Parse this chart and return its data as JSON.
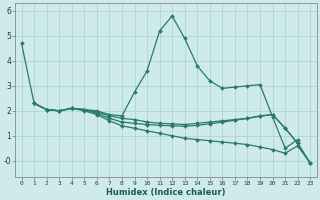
{
  "xlabel": "Humidex (Indice chaleur)",
  "background_color": "#ceeaea",
  "grid_color": "#aacfcf",
  "line_color": "#2a7a6a",
  "xlim": [
    -0.5,
    23.5
  ],
  "ylim": [
    -0.65,
    6.3
  ],
  "xticks": [
    0,
    1,
    2,
    3,
    4,
    5,
    6,
    7,
    8,
    9,
    10,
    11,
    12,
    13,
    14,
    15,
    16,
    17,
    18,
    19,
    20,
    21,
    22,
    23
  ],
  "yticks": [
    0,
    1,
    2,
    3,
    4,
    5,
    6
  ],
  "ytick_labels": [
    "-0",
    "1",
    "2",
    "3",
    "4",
    "5",
    "6"
  ],
  "lines": [
    {
      "x": [
        0,
        1,
        2,
        3,
        4,
        5,
        6,
        7,
        8,
        9,
        10,
        11,
        12,
        13,
        14,
        15,
        16,
        17,
        18,
        19,
        20,
        21,
        22
      ],
      "y": [
        4.7,
        2.3,
        2.05,
        2.0,
        2.1,
        2.05,
        2.0,
        1.85,
        1.8,
        2.75,
        3.6,
        5.2,
        5.8,
        4.9,
        3.8,
        3.2,
        2.9,
        2.95,
        3.0,
        3.05,
        1.75,
        0.5,
        0.85
      ]
    },
    {
      "x": [
        1,
        2,
        3,
        4,
        5,
        6,
        7,
        8,
        9,
        10,
        11,
        12,
        13,
        14,
        15,
        16,
        17,
        18,
        19,
        20,
        21,
        22,
        23
      ],
      "y": [
        2.3,
        2.05,
        2.0,
        2.1,
        2.05,
        1.95,
        1.8,
        1.7,
        1.65,
        1.55,
        1.5,
        1.48,
        1.45,
        1.5,
        1.55,
        1.6,
        1.65,
        1.7,
        1.8,
        1.85,
        1.3,
        0.7,
        -0.1
      ]
    },
    {
      "x": [
        1,
        2,
        3,
        4,
        5,
        6,
        7,
        8,
        9,
        10,
        11,
        12,
        13,
        14,
        15,
        16,
        17,
        18,
        19,
        20,
        21,
        22,
        23
      ],
      "y": [
        2.3,
        2.05,
        2.0,
        2.1,
        2.05,
        1.9,
        1.7,
        1.55,
        1.5,
        1.45,
        1.42,
        1.4,
        1.38,
        1.42,
        1.48,
        1.55,
        1.62,
        1.7,
        1.78,
        1.85,
        1.3,
        0.7,
        -0.1
      ]
    },
    {
      "x": [
        1,
        2,
        3,
        4,
        5,
        6,
        7,
        8,
        9,
        10,
        11,
        12,
        13,
        14,
        15,
        16,
        17,
        18,
        19,
        20,
        21,
        22,
        23
      ],
      "y": [
        2.3,
        2.05,
        2.0,
        2.1,
        2.0,
        1.85,
        1.6,
        1.4,
        1.3,
        1.2,
        1.1,
        1.0,
        0.9,
        0.85,
        0.8,
        0.75,
        0.7,
        0.65,
        0.55,
        0.45,
        0.3,
        0.6,
        -0.1
      ]
    }
  ]
}
